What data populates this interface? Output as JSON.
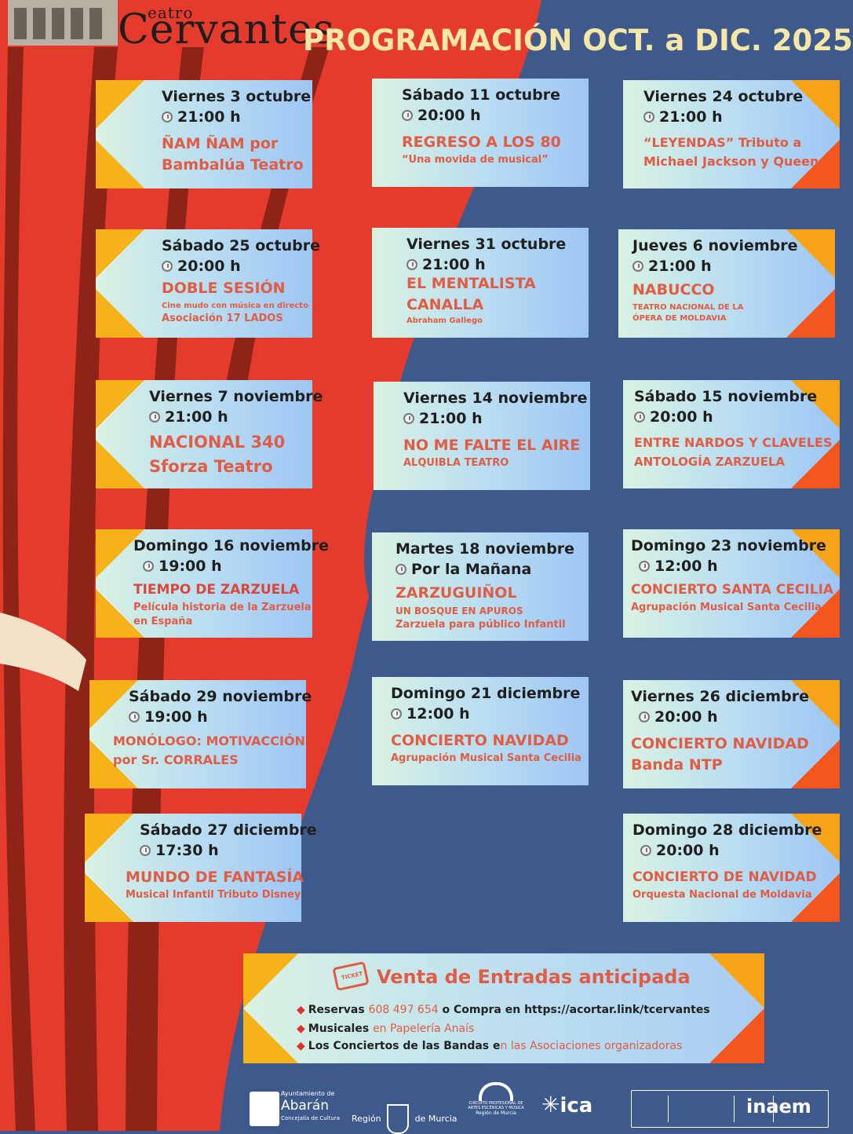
{
  "header": {
    "logo_small": "eatro",
    "logo_big": "Cervantes",
    "title": "PROGRAMACIÓN OCT. a DIC. 2025"
  },
  "events": [
    {
      "date": "Viernes 3 octubre",
      "time": "21:00 h",
      "title": "ÑAM ÑAM por",
      "subtitle": "Bambalúa Teatro"
    },
    {
      "date": "Sábado 11 octubre",
      "time": "20:00 h",
      "title": "REGRESO A LOS 80",
      "subtitle": "“Una movida de musical”"
    },
    {
      "date": "Viernes 24 octubre",
      "time": "21:00 h",
      "title": "“LEYENDAS” Tributo a",
      "subtitle": "Michael Jackson y Queen"
    },
    {
      "date": "Sábado 25 octubre",
      "time": "20:00 h",
      "title": "DOBLE SESIÓN",
      "subtitle": "Cine mudo con música en directo",
      "note": "Asociación 17 LADOS"
    },
    {
      "date": "Viernes 31 octubre",
      "time": "21:00 h",
      "title": "EL MENTALISTA",
      "title2": "CANALLA",
      "note": "Abraham Gallego"
    },
    {
      "date": "Jueves 6 noviembre",
      "time": "21:00 h",
      "title": "NABUCCO",
      "subtitle": "TEATRO NACIONAL DE LA",
      "note": "ÓPERA DE MOLDAVIA"
    },
    {
      "date": "Viernes 7 noviembre",
      "time": "21:00 h",
      "title": "NACIONAL 340",
      "subtitle": "Sforza Teatro"
    },
    {
      "date": "Viernes 14 noviembre",
      "time": "21:00 h",
      "title": "NO ME FALTE EL AIRE",
      "subtitle": "ALQUIBLA TEATRO"
    },
    {
      "date": "Sábado 15 noviembre",
      "time": "20:00 h",
      "title": "ENTRE NARDOS Y CLAVELES",
      "subtitle": "ANTOLOGÍA ZARZUELA"
    },
    {
      "date": "Domingo 16 noviembre",
      "time": "19:00 h",
      "title": "TIEMPO DE ZARZUELA",
      "subtitle": "Película historia de la Zarzuela",
      "note": "en España"
    },
    {
      "date": "Martes 18 noviembre",
      "time": "Por la Mañana",
      "title": "ZARZUGUIÑOL",
      "subtitle": "UN BOSQUE EN APUROS",
      "note": "Zarzuela para público Infantil"
    },
    {
      "date": "Domingo 23 noviembre",
      "time": "12:00 h",
      "title": "CONCIERTO SANTA CECILIA",
      "subtitle": "Agrupación Musical Santa Cecilia"
    },
    {
      "date": "Sábado 29 noviembre",
      "time": "19:00 h",
      "title": "MONÓLOGO: MOTIVACCIÓN",
      "subtitle": "por Sr. CORRALES"
    },
    {
      "date": "Domingo 21 diciembre",
      "time": "12:00 h",
      "title": "CONCIERTO NAVIDAD",
      "subtitle": "Agrupación Musical Santa Cecilia"
    },
    {
      "date": "Viernes 26 diciembre",
      "time": "20:00 h",
      "title": "CONCIERTO NAVIDAD",
      "subtitle": "Banda NTP"
    },
    {
      "date": "Sábado 27  diciembre",
      "time": "17:30 h",
      "title": "MUNDO DE FANTASÍA",
      "subtitle": "Musical Infantil Tributo Disney"
    },
    {
      "date": "Domingo 28  diciembre",
      "time": "20:00 h",
      "title": "CONCIERTO DE NAVIDAD",
      "subtitle": "Orquesta Nacional de Moldavia"
    }
  ],
  "sales": {
    "ticket_label": "TICKET",
    "title": "Venta de Entradas anticipada",
    "line1_label": "Reservas",
    "line1_phone": "608 497 654",
    "line1_text": "o Compra en https://acortar.link/tcervantes",
    "line2_label": "Musicales",
    "line2_text": "en Papelería Anaís",
    "line3_label": "Los Conciertos de las Bandas e",
    "line3_text": "n las Asociaciones organizadoras"
  },
  "footer": {
    "abaran_top": "Ayuntamiento de",
    "abaran_name": "Abarán",
    "abaran_sub": "Concejalía de Cultura",
    "region_left": "Región",
    "region_right": "de Murcia",
    "circuito": "CIRCUITO PROFESIONAL DE ARTES ESCÉNICAS Y MÚSICA",
    "circuito_sub": "Región de Murcia",
    "ica": "ica",
    "inaem": "inaem"
  },
  "colors": {
    "background_blue": "#3e5a8c",
    "curtain_red": "#e43b2c",
    "stripe_dark": "#8e2417",
    "accent_orange": "#f7b21a",
    "title_yellow": "#f6e7a8",
    "event_title_red": "#e05c44"
  }
}
